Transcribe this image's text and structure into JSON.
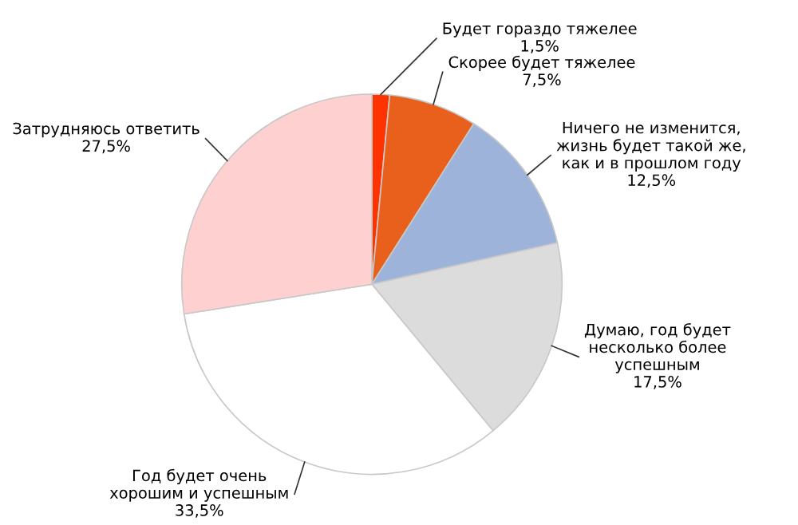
{
  "chart_data": {
    "type": "pie",
    "categories": [
      "Будет гораздо тяжелее",
      "Скорее будет тяжелее",
      "Ничего не изменится,\nжизнь будет такой же,\nкак и в прошлом году",
      "Думаю, год будет\nнесколько более\nуспешным",
      "Год будет очень\nхорошим и успешным",
      "Затрудняюсь ответить"
    ],
    "values": [
      1.5,
      7.5,
      12.5,
      17.5,
      33.5,
      27.5
    ],
    "value_labels": [
      "1,5%",
      "7,5%",
      "12,5%",
      "17,5%",
      "33,5%",
      "27,5%"
    ],
    "colors": [
      "#ff3300",
      "#e8601c",
      "#9db3d9",
      "#dcdcdc",
      "#ffffff",
      "#ffd0d0"
    ]
  }
}
